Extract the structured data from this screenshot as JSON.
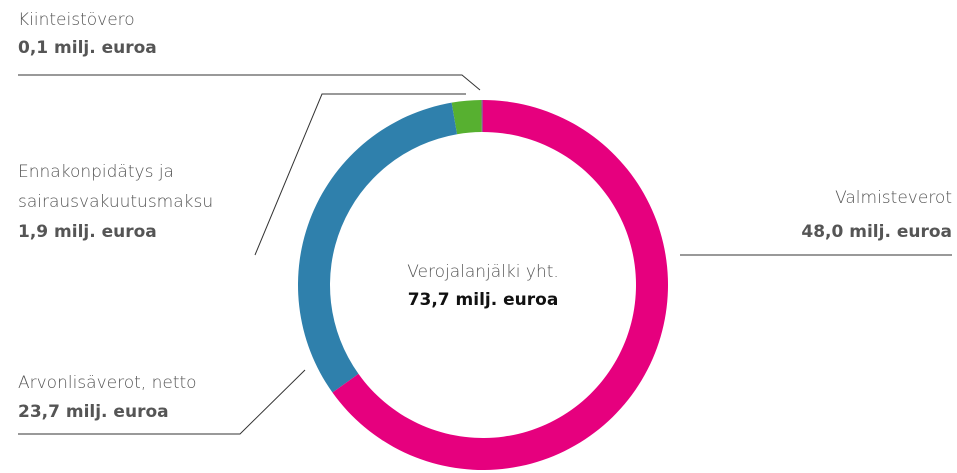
{
  "chart_data": {
    "type": "donut",
    "series": [
      {
        "name": "Valmisteverot",
        "value": 48.0,
        "value_label": "48,0 milj. euroa",
        "color": "#e6007e"
      },
      {
        "name": "Arvonlisäverot, netto",
        "value": 23.7,
        "value_label": "23,7 milj. euroa",
        "color": "#2f80ac"
      },
      {
        "name": [
          "Ennakonpidätys ja",
          "sairausvakuutusmaksu"
        ],
        "value": 1.9,
        "value_label": "1,9 milj. euroa",
        "color": "#57b030"
      },
      {
        "name": "Kiinteistövero",
        "value": 0.1,
        "value_label": "0,1 milj. euroa",
        "color": "#9b4f96"
      }
    ],
    "center": {
      "title": "Verojalanjälki yht.",
      "value_label": "73,7 milj. euroa"
    }
  }
}
